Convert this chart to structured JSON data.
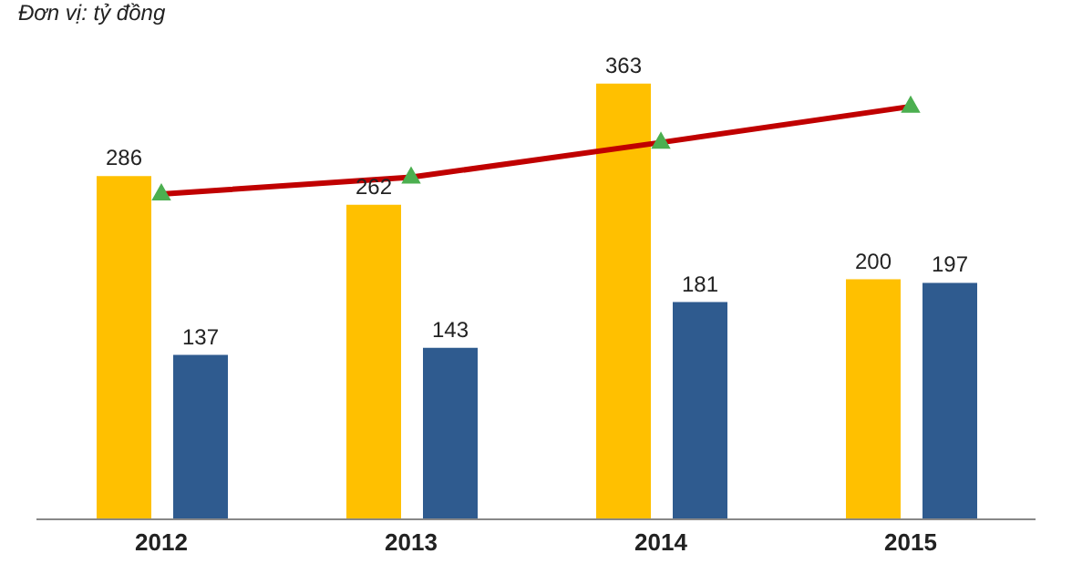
{
  "chart_data": {
    "type": "bar",
    "subtitle": "Đơn vị: tỷ đồng",
    "categories": [
      "2012",
      "2013",
      "2014",
      "2015"
    ],
    "series": [
      {
        "color": "#ffc000",
        "values": [
          286,
          262,
          363,
          200
        ],
        "value_labels": [
          "286",
          "262",
          "363",
          "200"
        ]
      },
      {
        "color": "#2f5b8f",
        "values": [
          137,
          143,
          181,
          197
        ],
        "value_labels": [
          "137",
          "143",
          "181",
          "197"
        ]
      },
      {
        "type": "line",
        "color": "#c00000",
        "values": [
          271,
          285,
          314,
          344
        ],
        "marker": "triangle"
      }
    ],
    "legend": false,
    "grid": false,
    "tick_labels": "x"
  }
}
